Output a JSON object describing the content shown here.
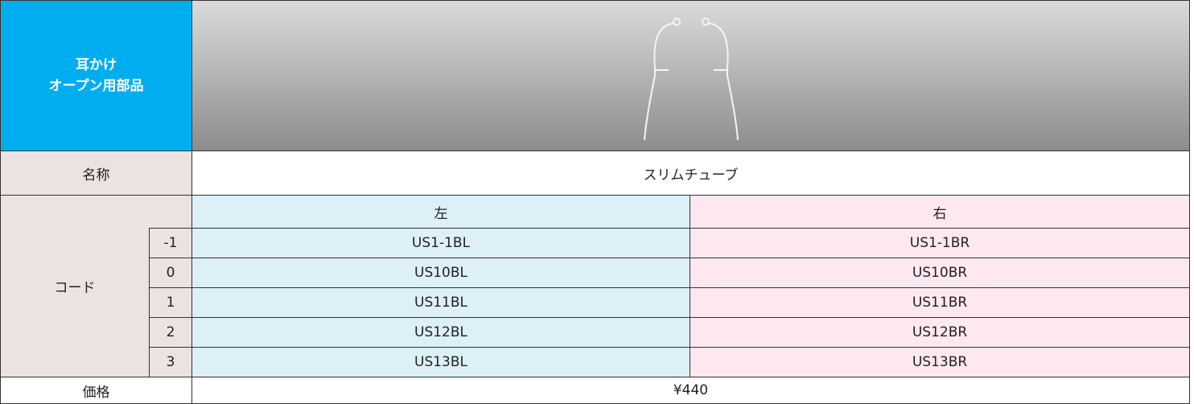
{
  "header": {
    "title": [
      "耳かけ",
      "オープン用部品"
    ]
  },
  "name": {
    "label": "名称",
    "value": "スリムチューブ"
  },
  "code": {
    "label": "コード",
    "left": "左",
    "right": "右",
    "rows": [
      {
        "size": "-1",
        "left": "US1-1BL",
        "right": "US1-1BR"
      },
      {
        "size": "0",
        "left": "US10BL",
        "right": "US10BR"
      },
      {
        "size": "1",
        "left": "US11BL",
        "right": "US11BR"
      },
      {
        "size": "2",
        "left": "US12BL",
        "right": "US12BR"
      },
      {
        "size": "3",
        "left": "US13BL",
        "right": "US13BR"
      }
    ]
  },
  "price": {
    "label": "価格",
    "value": "¥440"
  }
}
